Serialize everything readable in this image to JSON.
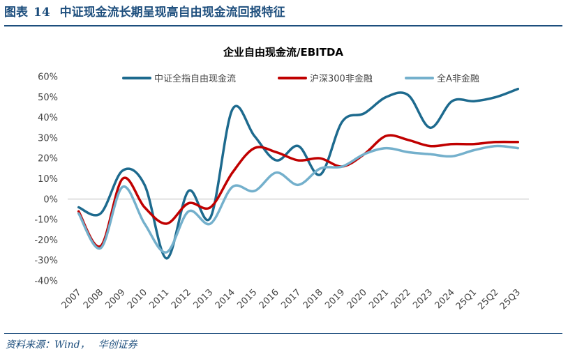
{
  "header": {
    "figure_label": "图表",
    "figure_number": "14",
    "figure_title": "中证现金流长期呈现高自由现金流回报特征"
  },
  "footer": {
    "source_label": "资料来源：",
    "source_value": "Wind，",
    "institution": "华创证券"
  },
  "chart_data": {
    "type": "line",
    "title": "企业自由现金流/EBITDA",
    "xlabel": "",
    "ylabel": "",
    "categories": [
      "2007",
      "2008",
      "2009",
      "2010",
      "2011",
      "2012",
      "2013",
      "2014",
      "2015",
      "2016",
      "2017",
      "2018",
      "2019",
      "2020",
      "2021",
      "2022",
      "2023",
      "2024",
      "25Q1",
      "25Q2",
      "25Q3"
    ],
    "y_ticks": [
      "60%",
      "50%",
      "40%",
      "30%",
      "20%",
      "10%",
      "0%",
      "-10%",
      "-20%",
      "-30%",
      "-40%"
    ],
    "ylim": [
      -40,
      60
    ],
    "grid": false,
    "legend_position": "top",
    "series": [
      {
        "name": "中证全指自由现金流",
        "color": "#1d6a8e",
        "values": [
          -4,
          -7,
          14,
          7,
          -29,
          4,
          -9,
          44,
          31,
          19,
          26,
          12,
          38,
          42,
          50,
          51,
          35,
          48,
          48,
          50,
          54
        ]
      },
      {
        "name": "沪深300非金融",
        "color": "#c00000",
        "values": [
          -6,
          -23,
          10,
          -4,
          -12,
          -2,
          -4,
          13,
          25,
          23,
          19,
          20,
          16,
          22,
          31,
          29,
          26,
          27,
          27,
          28,
          28
        ]
      },
      {
        "name": "全A非金融",
        "color": "#74b0cc",
        "values": [
          -7,
          -24,
          6,
          -12,
          -26,
          -6,
          -12,
          6,
          4,
          13,
          7,
          15,
          16,
          22,
          25,
          23,
          22,
          21,
          24,
          26,
          25
        ]
      }
    ]
  }
}
